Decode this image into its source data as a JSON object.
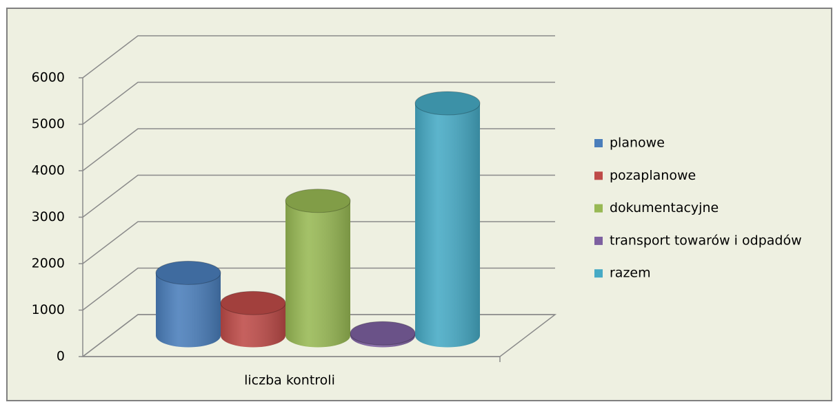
{
  "chart_data": {
    "type": "bar3d",
    "categories": [
      "liczba kontroli"
    ],
    "series": [
      {
        "name": "planowe",
        "color": "#4a7ebb",
        "values": [
          1350
        ]
      },
      {
        "name": "pozaplanowe",
        "color": "#be4b48",
        "values": [
          700
        ]
      },
      {
        "name": "dokumentacyjne",
        "color": "#98b954",
        "values": [
          2900
        ]
      },
      {
        "name": "transport towarów i odpadów",
        "color": "#7d60a0",
        "values": [
          50
        ]
      },
      {
        "name": "razem",
        "color": "#46aac5",
        "values": [
          5000
        ]
      }
    ],
    "ylim": [
      0,
      6000
    ],
    "yticks": [
      0,
      1000,
      2000,
      3000,
      4000,
      5000,
      6000
    ],
    "grid": true,
    "legend": "right"
  }
}
